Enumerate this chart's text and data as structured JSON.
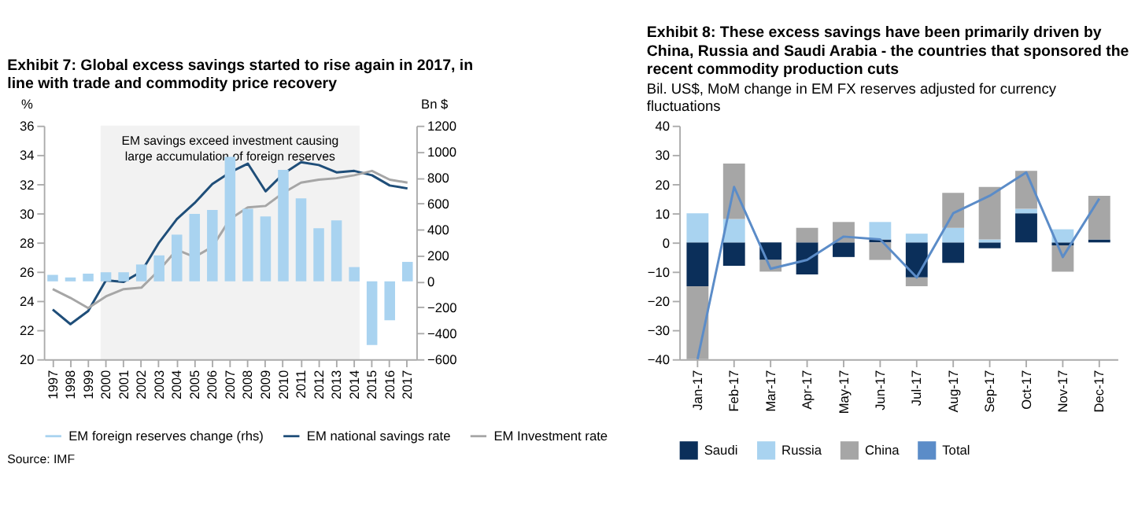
{
  "chart_data": [
    {
      "type": "bar",
      "title": "Exhibit 7: Global excess savings started to rise again in 2017, in line with trade and commodity price recovery",
      "ylabel": "%",
      "y2label": "Bn $",
      "categories": [
        "1997",
        "1998",
        "1999",
        "2000",
        "2001",
        "2002",
        "2003",
        "2004",
        "2005",
        "2006",
        "2007",
        "2008",
        "2009",
        "2010",
        "2011",
        "2012",
        "2013",
        "2014",
        "2015",
        "2016",
        "2017"
      ],
      "series": [
        {
          "name": "EM foreign reserves change (rhs)",
          "axis": "y2",
          "color": "#a9d3f0",
          "values": [
            50,
            30,
            60,
            70,
            70,
            130,
            200,
            360,
            520,
            550,
            960,
            560,
            500,
            860,
            640,
            410,
            470,
            110,
            -490,
            -300,
            150
          ]
        },
        {
          "name": "EM national savings rate",
          "type": "line",
          "color": "#1f4e79",
          "values": [
            23.4,
            22.4,
            23.3,
            25.4,
            25.3,
            26.0,
            28.0,
            29.6,
            30.7,
            32.0,
            32.8,
            33.4,
            31.5,
            32.7,
            33.5,
            33.3,
            32.8,
            32.9,
            32.6,
            31.9,
            31.7
          ]
        },
        {
          "name": "EM Investment rate",
          "type": "line",
          "color": "#a6a6a6",
          "values": [
            24.8,
            24.2,
            23.5,
            24.3,
            24.8,
            24.9,
            26.1,
            27.5,
            27.0,
            27.7,
            29.6,
            30.4,
            30.5,
            31.4,
            32.1,
            32.3,
            32.4,
            32.6,
            32.9,
            32.3,
            32.1
          ]
        }
      ],
      "ylim": [
        20,
        36
      ],
      "yticks": [
        20,
        22,
        24,
        26,
        28,
        30,
        32,
        34,
        36
      ],
      "y2lim": [
        -600,
        1200
      ],
      "y2ticks": [
        -600,
        -400,
        -200,
        0,
        200,
        400,
        600,
        800,
        1000,
        1200
      ],
      "bands": [
        {
          "axis": "x",
          "from": "2000",
          "to": "2014",
          "label": "EM savings exceed investment causing large  accumulation of foreign reserves",
          "color": "#f2f2f2"
        }
      ],
      "legend": "bottom",
      "grid": false,
      "annotations": [
        "Source: IMF"
      ]
    },
    {
      "type": "bar",
      "stacked": true,
      "title": "Exhibit 8: These excess savings have been primarily driven by China, Russia and Saudi Arabia - the countries that sponsored the recent commodity production cuts",
      "subtitle": "Bil. US$, MoM change in EM FX reserves adjusted for currency fluctuations",
      "categories": [
        "Jan-17",
        "Feb-17",
        "Mar-17",
        "Apr-17",
        "May-17",
        "Jun-17",
        "Jul-17",
        "Aug-17",
        "Sep-17",
        "Oct-17",
        "Nov-17",
        "Dec-17"
      ],
      "series": [
        {
          "name": "Saudi",
          "color": "#0b2f5a",
          "values": [
            -15,
            -8,
            -6,
            -11,
            -5,
            1,
            -12,
            -7,
            -2,
            10,
            -1,
            1
          ]
        },
        {
          "name": "Russia",
          "color": "#a9d3f0",
          "values": [
            10,
            8,
            0,
            0,
            0,
            6,
            3,
            5,
            1,
            1.5,
            4.5,
            0
          ]
        },
        {
          "name": "China",
          "color": "#a6a6a6",
          "values": [
            -25,
            19,
            -4,
            5,
            7,
            -6,
            -3,
            12,
            18,
            13,
            -9,
            15
          ]
        },
        {
          "name": "Total",
          "type": "line",
          "color": "#5b8cc8",
          "values": [
            -40,
            19,
            -9,
            -6,
            2,
            1,
            -12,
            10,
            16,
            24,
            -5,
            15
          ]
        }
      ],
      "ylim": [
        -40,
        40
      ],
      "yticks": [
        -40,
        -30,
        -20,
        -10,
        0,
        10,
        20,
        30,
        40
      ],
      "legend": "bottom",
      "grid": false
    }
  ]
}
